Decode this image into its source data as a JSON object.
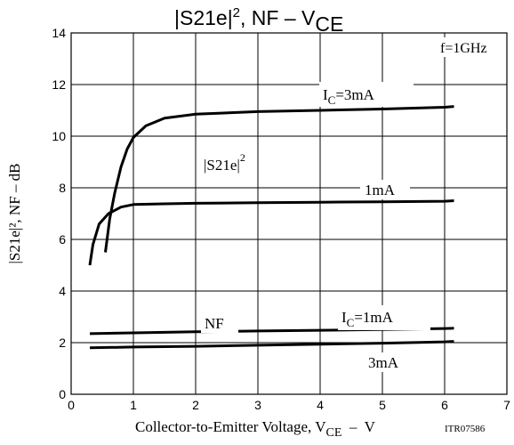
{
  "chart_data": {
    "type": "line",
    "title_main": "|S21e|",
    "title_sup": "2",
    "title_rest": ", NF  –  V",
    "title_sub": "CE",
    "xlabel_main": "Collector-to-Emitter Voltage, V",
    "xlabel_sub": "CE",
    "xlabel_unit": "  –  V",
    "ylabel": "|S21e|², NF  –  dB",
    "code": "ITR07586",
    "condition": "f=1GHz",
    "xlim": [
      0,
      7
    ],
    "ylim": [
      0,
      14
    ],
    "x_ticks": [
      "0",
      "1",
      "2",
      "3",
      "4",
      "5",
      "6",
      "7"
    ],
    "y_ticks": [
      "0",
      "2",
      "4",
      "6",
      "8",
      "10",
      "12",
      "14"
    ],
    "grid": true,
    "series": [
      {
        "name": "|S21e|², IC=3mA",
        "points": [
          [
            0.55,
            5.5
          ],
          [
            0.62,
            6.8
          ],
          [
            0.7,
            7.8
          ],
          [
            0.8,
            8.8
          ],
          [
            0.9,
            9.5
          ],
          [
            1.0,
            9.95
          ],
          [
            1.2,
            10.4
          ],
          [
            1.5,
            10.7
          ],
          [
            2.0,
            10.85
          ],
          [
            3.0,
            10.95
          ],
          [
            4.0,
            11.0
          ],
          [
            5.0,
            11.05
          ],
          [
            6.0,
            11.12
          ],
          [
            6.15,
            11.15
          ]
        ]
      },
      {
        "name": "|S21e|², IC=1mA",
        "points": [
          [
            0.3,
            5.0
          ],
          [
            0.35,
            5.8
          ],
          [
            0.45,
            6.6
          ],
          [
            0.6,
            7.0
          ],
          [
            0.8,
            7.25
          ],
          [
            1.0,
            7.35
          ],
          [
            1.5,
            7.38
          ],
          [
            2.0,
            7.4
          ],
          [
            3.0,
            7.42
          ],
          [
            4.0,
            7.44
          ],
          [
            5.0,
            7.46
          ],
          [
            6.0,
            7.48
          ],
          [
            6.15,
            7.5
          ]
        ]
      },
      {
        "name": "NF, IC=1mA",
        "points": [
          [
            0.3,
            2.35
          ],
          [
            1.0,
            2.38
          ],
          [
            2.0,
            2.42
          ],
          [
            3.0,
            2.45
          ],
          [
            4.0,
            2.48
          ],
          [
            5.0,
            2.51
          ],
          [
            6.0,
            2.55
          ],
          [
            6.15,
            2.56
          ]
        ]
      },
      {
        "name": "NF, IC=3mA",
        "points": [
          [
            0.3,
            1.8
          ],
          [
            1.0,
            1.83
          ],
          [
            2.0,
            1.86
          ],
          [
            3.0,
            1.9
          ],
          [
            4.0,
            1.94
          ],
          [
            5.0,
            1.98
          ],
          [
            6.0,
            2.03
          ],
          [
            6.15,
            2.05
          ]
        ]
      }
    ],
    "annotations": {
      "ic3": {
        "pre": "I",
        "sub": "C",
        "post": "=3mA"
      },
      "ic1_gain": "1mA",
      "s21_main": "|S21e|",
      "s21_sup": "2",
      "nf": "NF",
      "ic1_nf": {
        "pre": "I",
        "sub": "C",
        "post": "=1mA"
      },
      "ic3_nf": "3mA"
    }
  }
}
